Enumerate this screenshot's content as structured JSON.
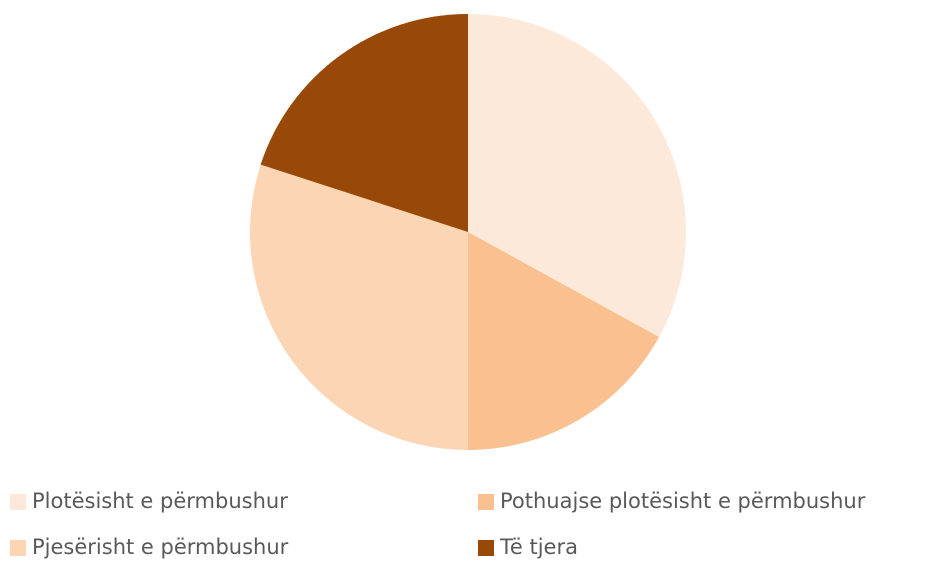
{
  "chart_data": {
    "type": "pie",
    "categories": [
      "Plotësisht e përmbushur",
      "Pothuajse plotësisht e përmbushur",
      "Pjesërisht e përmbushur",
      "Të tjera"
    ],
    "values": [
      33,
      17,
      30,
      20
    ],
    "colors": [
      "#fde9d9",
      "#fac090",
      "#fcd5b5",
      "#984807"
    ],
    "legend": "bottom"
  }
}
